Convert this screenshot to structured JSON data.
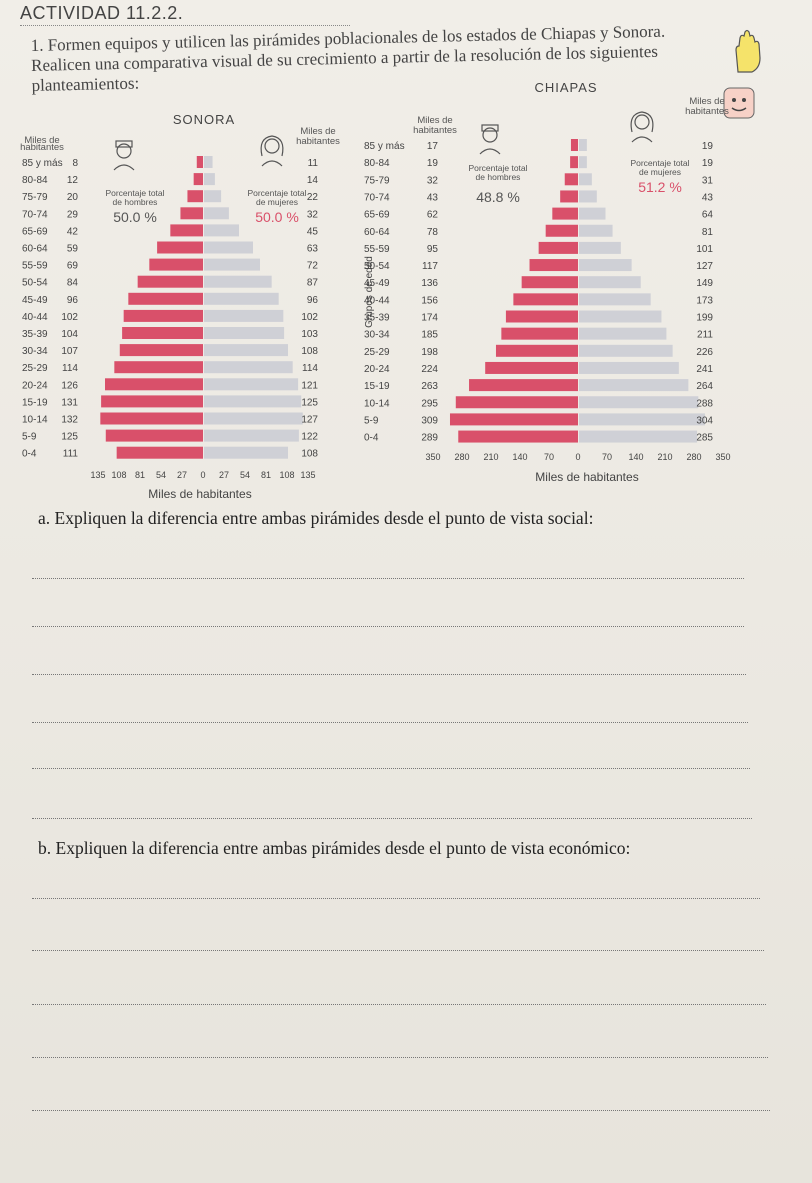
{
  "activity": {
    "title": "ACTIVIDAD 11.2.2.",
    "instruction": "1. Formen equipos y utilicen las pirámides poblacionales de los estados de Chiapas y Sonora. Realicen una comparativa visual de su crecimiento a partir de la resolución de los siguientes planteamientos:"
  },
  "chart_data": [
    {
      "type": "bar",
      "title": "SONORA",
      "categories": [
        "85 y más",
        "80-84",
        "75-79",
        "70-74",
        "65-69",
        "60-64",
        "55-59",
        "50-54",
        "45-49",
        "40-44",
        "35-39",
        "30-34",
        "25-29",
        "20-24",
        "15-19",
        "10-14",
        "5-9",
        "0-4"
      ],
      "series": [
        {
          "name": "Porcentaje total de hombres",
          "values": [
            8,
            12,
            20,
            29,
            42,
            59,
            69,
            84,
            96,
            102,
            104,
            107,
            114,
            126,
            131,
            132,
            125,
            111
          ]
        },
        {
          "name": "Porcentaje total de mujeres",
          "values": [
            11,
            14,
            22,
            32,
            45,
            63,
            72,
            87,
            96,
            102,
            103,
            108,
            114,
            121,
            125,
            127,
            122,
            108
          ]
        }
      ],
      "unit_label_left": "Miles de habitantes",
      "unit_label_right": "Miles de habitantes",
      "men_label": "Porcentaje total de hombres",
      "men_pct": "50.0 %",
      "women_label": "Porcentaje total de mujeres",
      "women_pct": "50.0 %",
      "xlabel": "Miles de habitantes",
      "xticks": [
        "135",
        "108",
        "81",
        "54",
        "27",
        "0",
        "27",
        "54",
        "81",
        "108",
        "135"
      ],
      "xlim": [
        -135,
        135
      ],
      "colors": {
        "men": "#d9506a",
        "women": "#cfd0d6"
      }
    },
    {
      "type": "bar",
      "title": "CHIAPAS",
      "categories": [
        "85 y más",
        "80-84",
        "75-79",
        "70-74",
        "65-69",
        "60-64",
        "55-59",
        "50-54",
        "45-49",
        "40-44",
        "35-39",
        "30-34",
        "25-29",
        "20-24",
        "15-19",
        "10-14",
        "5-9",
        "0-4"
      ],
      "series": [
        {
          "name": "Porcentaje total de hombres",
          "values": [
            17,
            19,
            32,
            43,
            62,
            78,
            95,
            117,
            136,
            156,
            174,
            185,
            198,
            224,
            263,
            295,
            309,
            289
          ]
        },
        {
          "name": "Porcentaje total de mujeres",
          "values": [
            19,
            19,
            31,
            43,
            64,
            81,
            101,
            127,
            149,
            173,
            199,
            211,
            226,
            241,
            264,
            288,
            304,
            285
          ]
        }
      ],
      "unit_label_left": "Miles de habitantes",
      "unit_label_right": "Miles de habitantes",
      "ylabel": "Grupos de edad",
      "men_label": "Porcentaje total de hombres",
      "men_pct": "48.8 %",
      "women_label": "Porcentaje total de mujeres",
      "women_pct": "51.2 %",
      "xlabel": "Miles de habitantes",
      "xticks": [
        "350",
        "280",
        "210",
        "140",
        "70",
        "0",
        "70",
        "140",
        "210",
        "280",
        "350"
      ],
      "xlim": [
        -350,
        350
      ],
      "colors": {
        "men": "#d9506a",
        "women": "#cfd0d6"
      }
    }
  ],
  "questions": {
    "a": "a. Expliquen la diferencia entre ambas pirámides desde el punto de vista social:",
    "b": "b. Expliquen la diferencia entre ambas pirámides desde el punto de vista económico:"
  }
}
